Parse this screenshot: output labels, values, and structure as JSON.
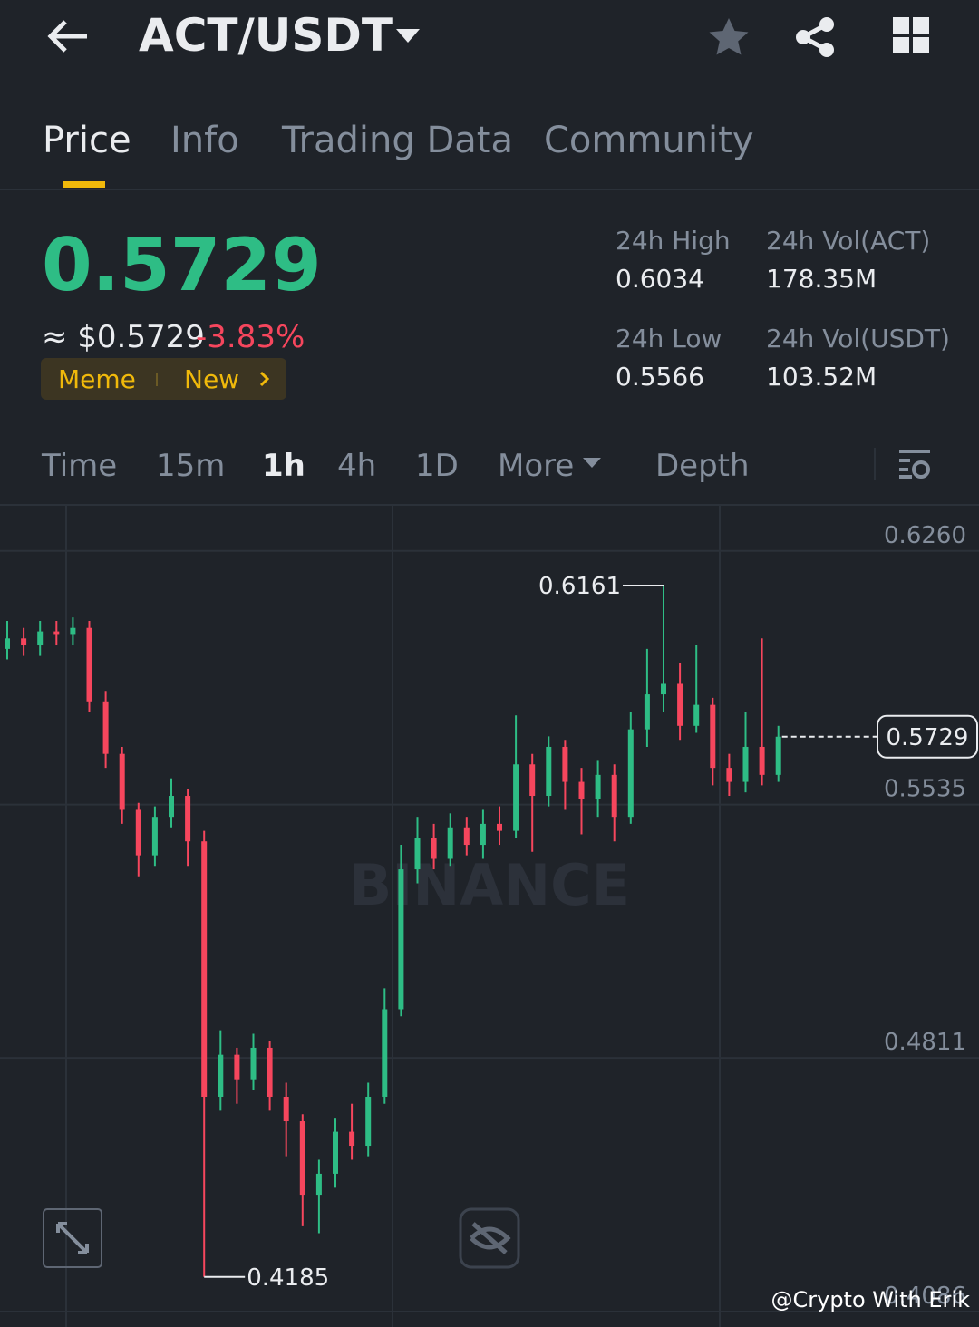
{
  "header": {
    "pair": "ACT/USDT"
  },
  "tabs": [
    "Price",
    "Info",
    "Trading Data",
    "Community"
  ],
  "price": {
    "last": "0.5729",
    "fiat": "≈ $0.5729",
    "change": "-3.83%",
    "tags": [
      "Meme",
      "New"
    ]
  },
  "stats": [
    {
      "label": "24h High",
      "value": "0.6034"
    },
    {
      "label": "24h Vol(ACT)",
      "value": "178.35M"
    },
    {
      "label": "24h Low",
      "value": "0.5566"
    },
    {
      "label": "24h Vol(USDT)",
      "value": "103.52M"
    }
  ],
  "intervals": [
    "Time",
    "15m",
    "1h",
    "4h",
    "1D",
    "More",
    "Depth"
  ],
  "chart_data": {
    "type": "candlestick",
    "watermark": "BINANCE",
    "open": [
      0.598,
      0.601,
      0.599,
      0.603,
      0.602,
      0.604,
      0.583,
      0.568,
      0.552,
      0.539,
      0.55,
      0.556,
      0.543,
      0.47,
      0.482,
      0.475,
      0.484,
      0.47,
      0.463,
      0.442,
      0.448,
      0.46,
      0.456,
      0.47,
      0.495,
      0.535,
      0.544,
      0.538,
      0.547,
      0.542,
      0.548,
      0.546,
      0.565,
      0.556,
      0.57,
      0.56,
      0.555,
      0.562,
      0.55,
      0.575,
      0.585,
      0.588,
      0.576,
      0.582,
      0.564,
      0.56,
      0.57,
      0.562
    ],
    "high": [
      0.606,
      0.604,
      0.606,
      0.606,
      0.607,
      0.606,
      0.586,
      0.57,
      0.554,
      0.553,
      0.561,
      0.558,
      0.546,
      0.489,
      0.484,
      0.488,
      0.486,
      0.474,
      0.465,
      0.452,
      0.464,
      0.468,
      0.474,
      0.501,
      0.542,
      0.55,
      0.548,
      0.551,
      0.55,
      0.552,
      0.553,
      0.579,
      0.568,
      0.573,
      0.572,
      0.564,
      0.566,
      0.565,
      0.58,
      0.598,
      0.6161,
      0.594,
      0.599,
      0.584,
      0.568,
      0.58,
      0.601,
      0.576
    ],
    "low": [
      0.595,
      0.596,
      0.596,
      0.599,
      0.599,
      0.58,
      0.564,
      0.548,
      0.533,
      0.536,
      0.547,
      0.536,
      0.4185,
      0.466,
      0.468,
      0.472,
      0.466,
      0.453,
      0.433,
      0.431,
      0.444,
      0.452,
      0.453,
      0.468,
      0.493,
      0.531,
      0.535,
      0.536,
      0.539,
      0.538,
      0.542,
      0.544,
      0.54,
      0.553,
      0.552,
      0.545,
      0.55,
      0.543,
      0.548,
      0.57,
      0.58,
      0.572,
      0.574,
      0.559,
      0.556,
      0.557,
      0.559,
      0.56
    ],
    "close": [
      0.601,
      0.599,
      0.603,
      0.602,
      0.604,
      0.583,
      0.568,
      0.552,
      0.539,
      0.55,
      0.556,
      0.543,
      0.47,
      0.482,
      0.475,
      0.484,
      0.47,
      0.463,
      0.442,
      0.448,
      0.46,
      0.456,
      0.47,
      0.495,
      0.535,
      0.544,
      0.538,
      0.547,
      0.542,
      0.548,
      0.546,
      0.565,
      0.556,
      0.57,
      0.56,
      0.555,
      0.562,
      0.55,
      0.575,
      0.585,
      0.588,
      0.576,
      0.582,
      0.564,
      0.56,
      0.57,
      0.562,
      0.5729
    ],
    "ylim": [
      0.4042,
      0.6389
    ],
    "yticks": [
      {
        "value": 0.626,
        "label": "0.6260"
      },
      {
        "value": 0.5535,
        "label": "0.5535"
      },
      {
        "value": 0.4811,
        "label": "0.4811"
      },
      {
        "value": 0.4086,
        "label": "0.4086"
      }
    ],
    "up_color": "#2ebd85",
    "down_color": "#f6465d",
    "grid": true
  },
  "credit": "@Crypto With Erik"
}
